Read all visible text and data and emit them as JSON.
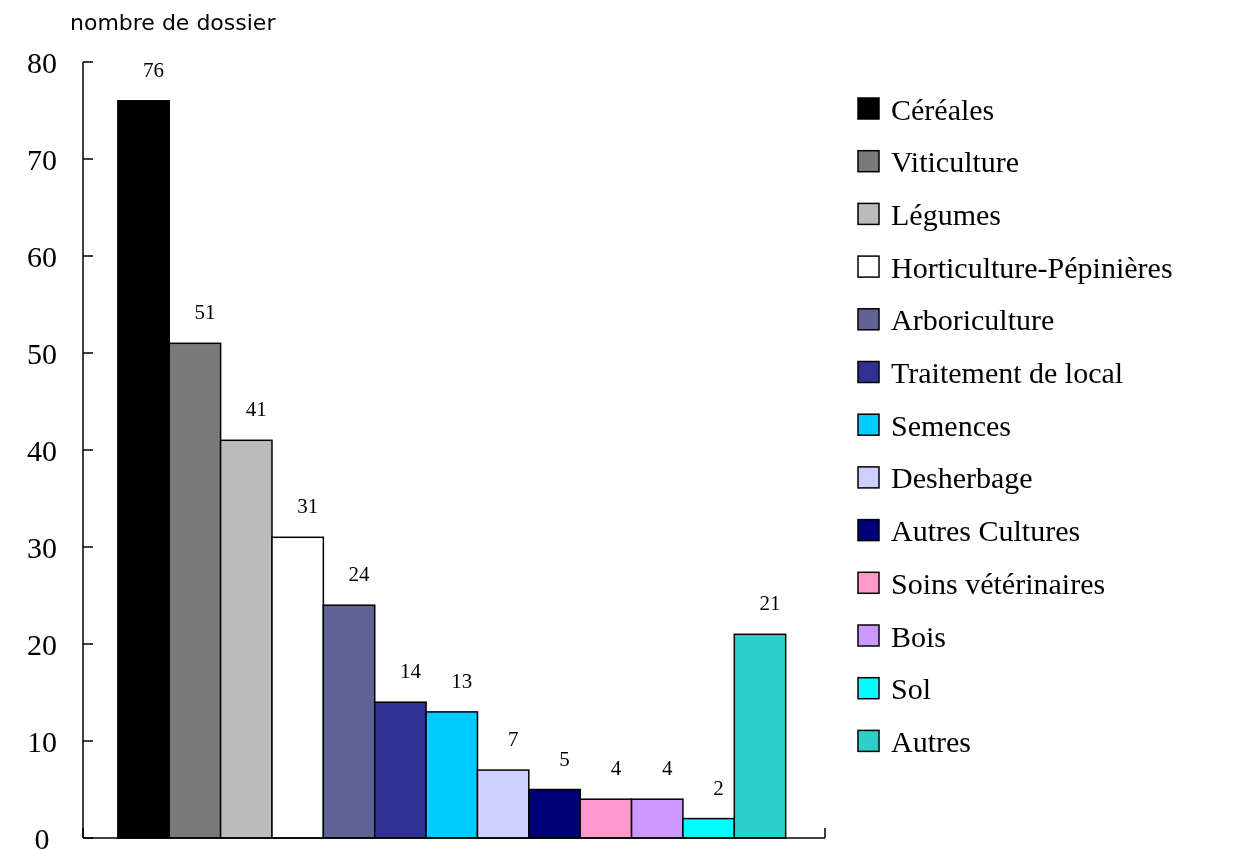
{
  "chart_data": {
    "type": "bar",
    "ylabel": "nombre de dossier",
    "categories": [
      null
    ],
    "ylim": [
      0,
      80
    ],
    "yticks": [
      0,
      10,
      20,
      30,
      40,
      50,
      60,
      70,
      80
    ],
    "data_labels": true,
    "legend": "right",
    "grid": false,
    "series": [
      {
        "name": "Céréales",
        "color": "#000000",
        "values": [
          76
        ]
      },
      {
        "name": "Viticulture",
        "color": "#7a7a7a",
        "values": [
          51
        ]
      },
      {
        "name": "Légumes",
        "color": "#bbbbbb",
        "values": [
          41
        ]
      },
      {
        "name": "Horticulture-Pépinières",
        "color": "#ffffff",
        "values": [
          31
        ]
      },
      {
        "name": "Arboriculture",
        "color": "#5f6495",
        "values": [
          24
        ]
      },
      {
        "name": "Traitement de local",
        "color": "#2e3192",
        "values": [
          14
        ]
      },
      {
        "name": "Semences",
        "color": "#00ccff",
        "values": [
          13
        ]
      },
      {
        "name": "Desherbage",
        "color": "#cccfff",
        "values": [
          7
        ]
      },
      {
        "name": "Autres Cultures",
        "color": "#000077",
        "values": [
          5
        ]
      },
      {
        "name": "Soins vétérinaires",
        "color": "#ff99cc",
        "values": [
          4
        ]
      },
      {
        "name": "Bois",
        "color": "#cc99ff",
        "values": [
          4
        ]
      },
      {
        "name": "Sol",
        "color": "#00ffff",
        "values": [
          2
        ]
      },
      {
        "name": "Autres",
        "color": "#2ecfc9",
        "values": [
          21
        ]
      }
    ]
  }
}
